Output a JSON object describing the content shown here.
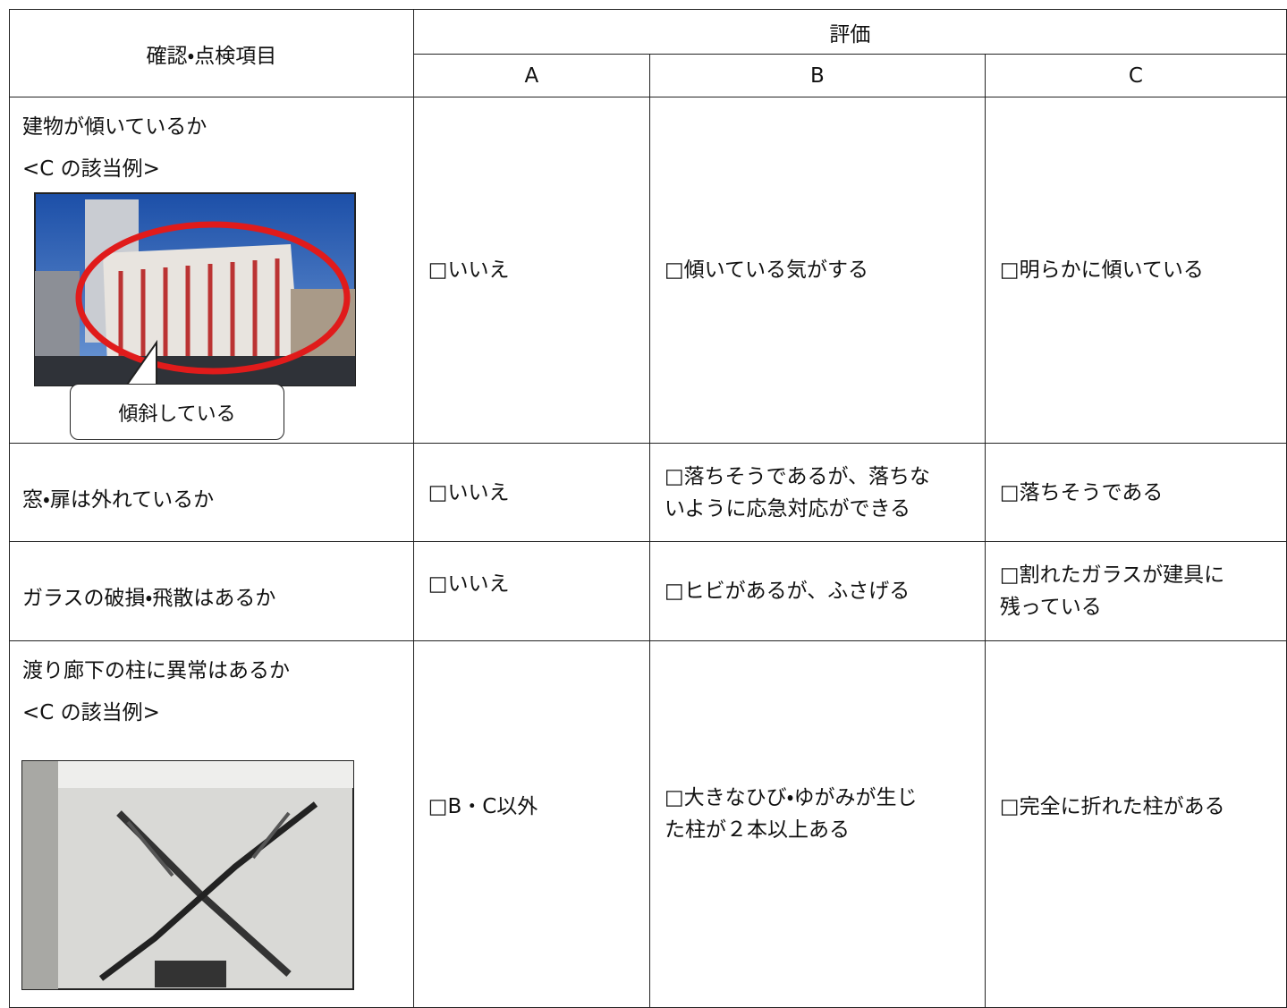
{
  "table": {
    "header": {
      "item": "確認・点検項目",
      "evaluation": "評価",
      "grades": [
        "A",
        "B",
        "C"
      ]
    },
    "rows": [
      {
        "item": [
          "建物が傾いているか",
          "<C の該当例>"
        ],
        "callout": "傾斜している",
        "a": [
          "□いいえ"
        ],
        "b": [
          "□傾いている気がする"
        ],
        "c": [
          "□明らかに傾いている"
        ]
      },
      {
        "item": [
          "窓・扉は外れているか"
        ],
        "a": [
          "□いいえ"
        ],
        "b": [
          "□落ちそうであるが、落ちな",
          "いように応急対応ができる"
        ],
        "c": [
          "□落ちそうである"
        ]
      },
      {
        "item": [
          "ガラスの破損・飛散はあるか"
        ],
        "a": [
          "□いいえ"
        ],
        "b": [
          "□ヒビがあるが、ふさげる"
        ],
        "c": [
          "□割れたガラスが建具に",
          "残っている"
        ]
      },
      {
        "item": [
          "渡り廊下の柱に異常はあるか",
          "<C の該当例>"
        ],
        "a": [
          "□B・C以外"
        ],
        "b": [
          "□大きなひび・ゆがみが生じ",
          "た柱が２本以上ある"
        ],
        "c": [
          "□完全に折れた柱がある"
        ]
      }
    ]
  }
}
